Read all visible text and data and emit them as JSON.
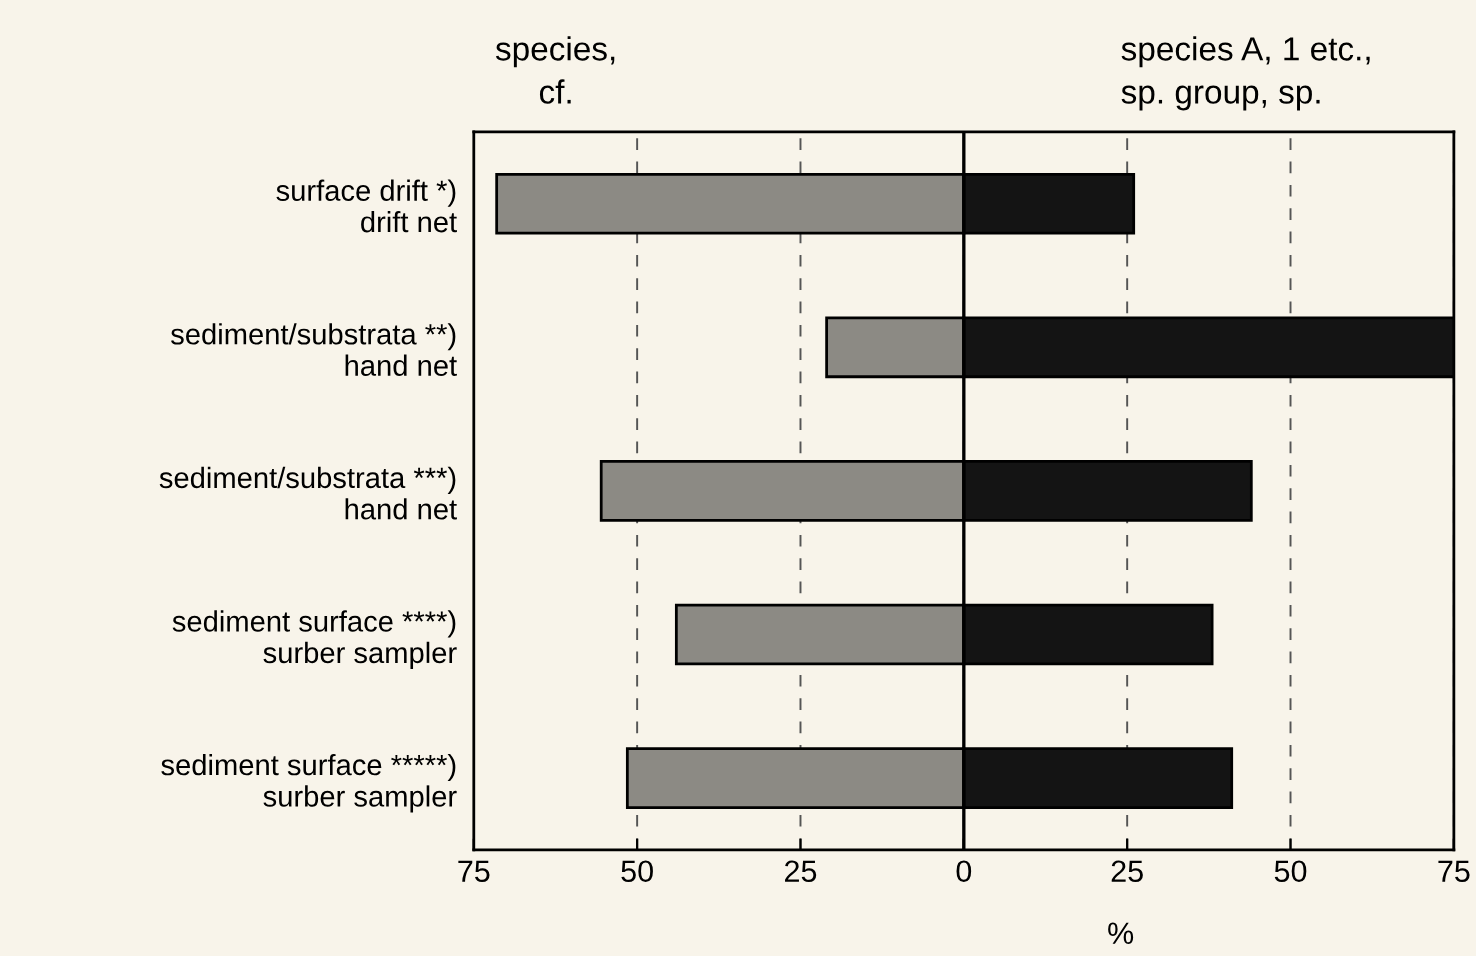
{
  "chart_data": {
    "type": "bar",
    "orientation": "horizontal",
    "stacked": true,
    "categories": [
      "surface drift *)\ndrift net",
      "sediment/substrata **)\nhand net",
      "sediment/substrata ***)\nhand net",
      "sediment surface ****)\nsurber sampler",
      "sediment surface *****)\nsurber sampler"
    ],
    "series": [
      {
        "color": "#8c8a84",
        "values": [
          -71.5,
          -21,
          -55.5,
          -44,
          -51.5
        ]
      },
      {
        "color": "#141414",
        "values": [
          26,
          75,
          44,
          38,
          41
        ]
      }
    ],
    "xlabel": "%",
    "annotations": [
      "species,\ncf.",
      "species A, 1 etc.,\nsp. group, sp."
    ],
    "xlim": [
      -75,
      75
    ],
    "xticks": [
      {
        "value": -75,
        "label": "75"
      },
      {
        "value": -50,
        "label": "50"
      },
      {
        "value": -25,
        "label": "25"
      },
      0,
      25,
      50,
      75
    ],
    "grid": "x",
    "ref_lines": [
      {
        "axis": "x",
        "value": 0,
        "color": "#000000",
        "line_style": "solid"
      }
    ]
  }
}
